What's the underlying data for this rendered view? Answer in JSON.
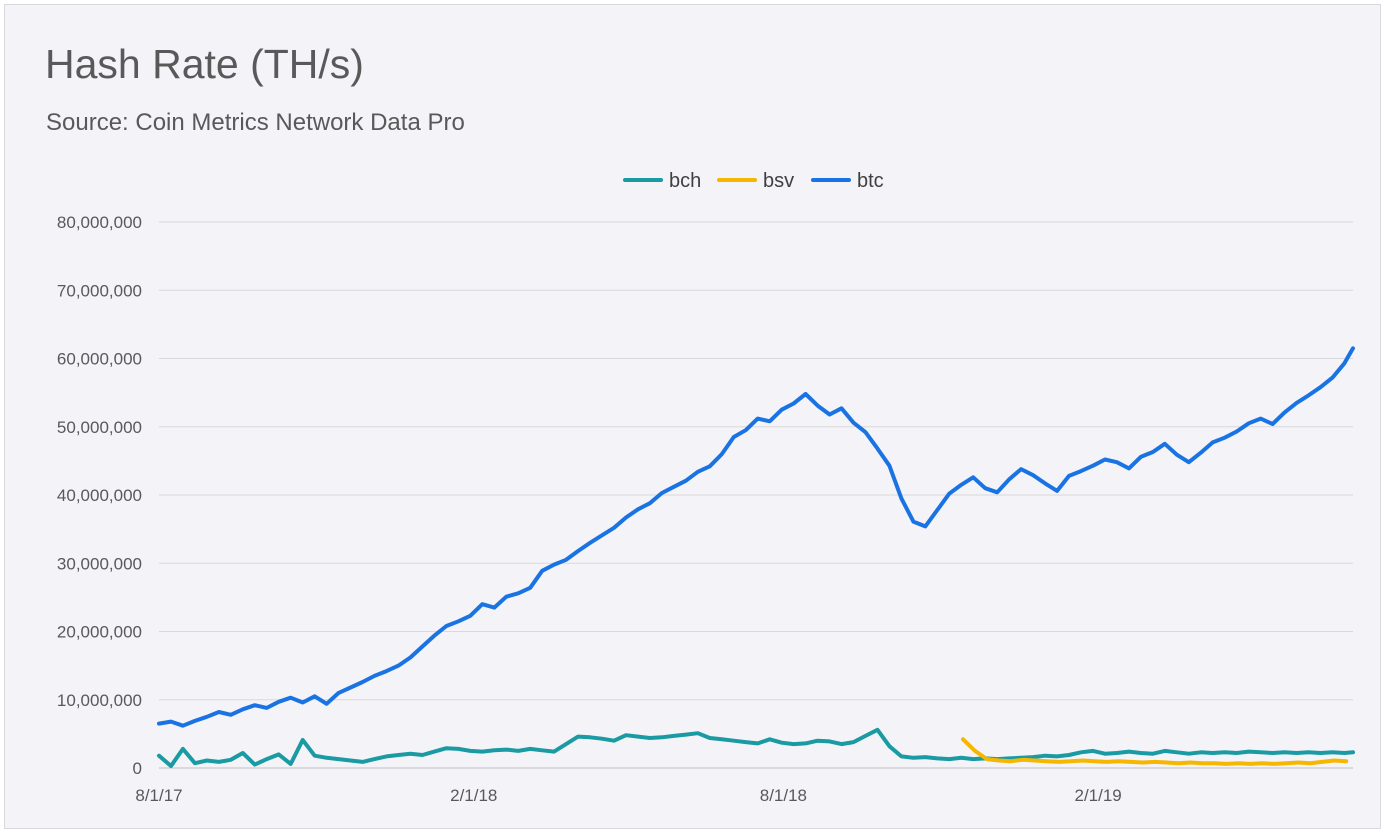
{
  "chart_data": {
    "type": "line",
    "title": "Hash Rate (TH/s)",
    "subtitle": "Source: Coin Metrics Network Data Pro",
    "xlabel": "",
    "ylabel": "",
    "x_start": "8/1/17",
    "x_end": "6/30/19",
    "ylim": [
      0,
      80000000
    ],
    "y_ticks": [
      0,
      10000000,
      20000000,
      30000000,
      40000000,
      50000000,
      60000000,
      70000000,
      80000000
    ],
    "y_tick_labels": [
      "0",
      "10,000,000",
      "20,000,000",
      "30,000,000",
      "40,000,000",
      "50,000,000",
      "60,000,000",
      "70,000,000",
      "80,000,000"
    ],
    "x_ticks": [
      {
        "label": "8/1/17",
        "day": 0
      },
      {
        "label": "2/1/18",
        "day": 184
      },
      {
        "label": "8/1/18",
        "day": 365
      },
      {
        "label": "2/1/19",
        "day": 549
      }
    ],
    "x_max_day": 698,
    "grid": true,
    "legend_position": "top-center",
    "colors": {
      "bch": "#1a9aa2",
      "bsv": "#f5b700",
      "btc": "#1a73e2"
    },
    "series": [
      {
        "name": "bch",
        "color": "#1a9aa2",
        "start_day": 0,
        "step_days": 7,
        "values": [
          1800000,
          300000,
          2800000,
          700000,
          1100000,
          900000,
          1200000,
          2200000,
          500000,
          1300000,
          2000000,
          600000,
          4100000,
          1800000,
          1500000,
          1300000,
          1100000,
          900000,
          1300000,
          1700000,
          1900000,
          2100000,
          1900000,
          2400000,
          2900000,
          2800000,
          2500000,
          2400000,
          2600000,
          2700000,
          2500000,
          2800000,
          2600000,
          2400000,
          3500000,
          4600000,
          4500000,
          4300000,
          4000000,
          4800000,
          4600000,
          4400000,
          4500000,
          4700000,
          4900000,
          5100000,
          4400000,
          4200000,
          4000000,
          3800000,
          3600000,
          4200000,
          3700000,
          3500000,
          3600000,
          4000000,
          3900000,
          3500000,
          3800000,
          4700000,
          5600000,
          3200000,
          1700000,
          1500000,
          1600000,
          1400000,
          1300000,
          1500000,
          1300000,
          1400000,
          1300000,
          1400000,
          1500000,
          1600000,
          1800000,
          1700000,
          1900000,
          2300000,
          2500000,
          2100000,
          2200000,
          2400000,
          2200000,
          2100000,
          2500000,
          2300000,
          2100000,
          2300000,
          2200000,
          2300000,
          2200000,
          2400000,
          2300000,
          2200000,
          2300000,
          2200000,
          2300000,
          2200000,
          2300000,
          2200000,
          2300000
        ]
      },
      {
        "name": "bsv",
        "color": "#f5b700",
        "start_day": 470,
        "step_days": 7,
        "values": [
          4200000,
          2500000,
          1300000,
          1100000,
          1000000,
          1200000,
          1100000,
          1000000,
          900000,
          1000000,
          1100000,
          1000000,
          900000,
          1000000,
          900000,
          800000,
          900000,
          800000,
          700000,
          800000,
          700000,
          700000,
          600000,
          700000,
          600000,
          700000,
          600000,
          700000,
          800000,
          700000,
          900000,
          1100000,
          1000000
        ]
      },
      {
        "name": "btc",
        "color": "#1a73e2",
        "start_day": 0,
        "step_days": 7,
        "values": [
          6500000,
          6800000,
          6200000,
          6900000,
          7500000,
          8200000,
          7800000,
          8600000,
          9200000,
          8800000,
          9700000,
          10300000,
          9600000,
          10500000,
          9400000,
          11000000,
          11800000,
          12600000,
          13500000,
          14200000,
          15000000,
          16200000,
          17800000,
          19400000,
          20800000,
          21500000,
          22300000,
          24000000,
          23500000,
          25100000,
          25600000,
          26400000,
          28900000,
          29800000,
          30500000,
          31800000,
          33000000,
          34100000,
          35200000,
          36700000,
          37900000,
          38800000,
          40300000,
          41200000,
          42100000,
          43400000,
          44200000,
          46000000,
          48500000,
          49500000,
          51200000,
          50800000,
          52500000,
          53400000,
          54800000,
          53100000,
          51800000,
          52700000,
          50600000,
          49200000,
          46800000,
          44300000,
          39500000,
          36100000,
          35400000,
          37800000,
          40200000,
          41500000,
          42600000,
          41000000,
          40400000,
          42300000,
          43800000,
          42900000,
          41700000,
          40600000,
          42800000,
          43500000,
          44300000,
          45200000,
          44800000,
          43900000,
          45600000,
          46300000,
          47500000,
          45900000,
          44800000,
          46200000,
          47700000,
          48400000,
          49300000,
          50500000,
          51200000,
          50400000,
          52100000,
          53500000,
          54600000,
          55800000,
          57200000,
          59300000,
          61500000
        ]
      }
    ]
  },
  "legend": {
    "items": [
      {
        "name": "bch",
        "color": "#1a9aa2"
      },
      {
        "name": "bsv",
        "color": "#f5b700"
      },
      {
        "name": "btc",
        "color": "#1a73e2"
      }
    ]
  }
}
